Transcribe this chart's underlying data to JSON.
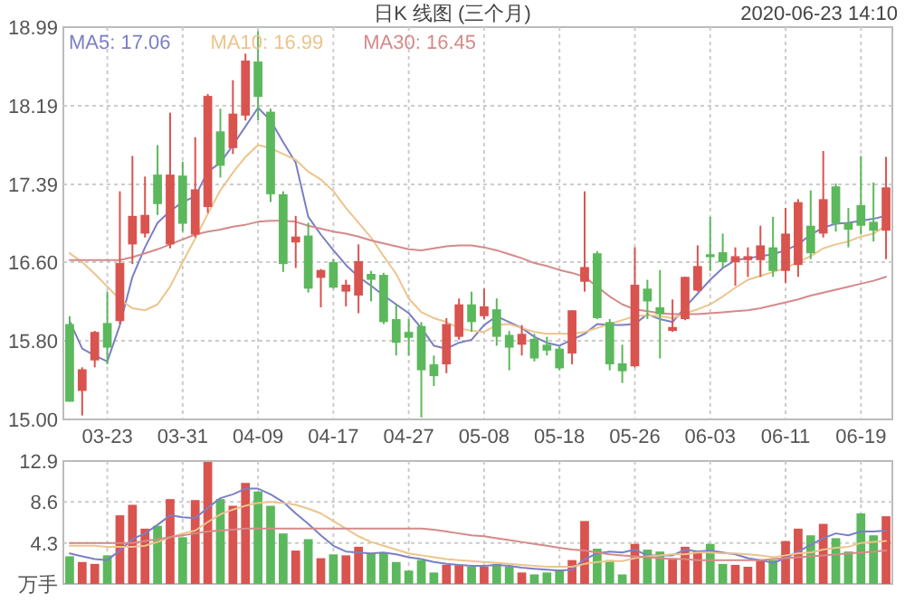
{
  "chart_data": [
    {
      "type": "candlestick",
      "title": "日K 线图 (三个月)",
      "annotations": [
        "2020-06-23 14:10"
      ],
      "categories": [
        null,
        null,
        null,
        "03-23",
        null,
        null,
        null,
        null,
        null,
        "03-31",
        null,
        null,
        null,
        null,
        null,
        "04-09",
        null,
        null,
        null,
        null,
        null,
        "04-17",
        null,
        null,
        null,
        null,
        null,
        "04-27",
        null,
        null,
        null,
        null,
        null,
        "05-08",
        null,
        null,
        null,
        null,
        null,
        "05-18",
        null,
        null,
        null,
        null,
        null,
        "05-26",
        null,
        null,
        null,
        null,
        null,
        "06-03",
        null,
        null,
        null,
        null,
        null,
        "06-11",
        null,
        null,
        null,
        null,
        null,
        "06-19",
        null,
        null
      ],
      "ohlc": [
        [
          15.97,
          16.05,
          15.18,
          15.18
        ],
        [
          15.29,
          15.53,
          15.04,
          15.51
        ],
        [
          15.6,
          15.9,
          15.53,
          15.89
        ],
        [
          15.98,
          16.3,
          15.56,
          15.73
        ],
        [
          16.0,
          17.32,
          15.97,
          16.59
        ],
        [
          16.78,
          17.68,
          16.58,
          17.07
        ],
        [
          16.89,
          17.47,
          16.85,
          17.08
        ],
        [
          17.49,
          17.79,
          17.08,
          17.19
        ],
        [
          16.78,
          18.12,
          16.74,
          17.49
        ],
        [
          17.48,
          17.62,
          16.91,
          16.99
        ],
        [
          16.88,
          17.87,
          16.85,
          17.34
        ],
        [
          17.16,
          18.31,
          17.1,
          18.29
        ],
        [
          17.93,
          18.16,
          17.46,
          17.58
        ],
        [
          17.76,
          18.45,
          17.7,
          18.11
        ],
        [
          18.09,
          18.72,
          18.04,
          18.65
        ],
        [
          18.64,
          18.95,
          18.04,
          18.28
        ],
        [
          18.13,
          18.16,
          17.21,
          17.29
        ],
        [
          17.29,
          17.32,
          16.5,
          16.58
        ],
        [
          16.8,
          17.07,
          16.54,
          16.86
        ],
        [
          16.87,
          17.0,
          16.29,
          16.33
        ],
        [
          16.44,
          16.53,
          16.14,
          16.52
        ],
        [
          16.6,
          16.63,
          16.33,
          16.34
        ],
        [
          16.3,
          16.42,
          16.15,
          16.37
        ],
        [
          16.26,
          16.78,
          16.08,
          16.61
        ],
        [
          16.48,
          16.51,
          16.2,
          16.42
        ],
        [
          16.47,
          16.49,
          15.97,
          15.99
        ],
        [
          16.02,
          16.17,
          15.65,
          15.78
        ],
        [
          15.89,
          16.02,
          15.65,
          15.83
        ],
        [
          15.95,
          15.99,
          15.02,
          15.5
        ],
        [
          15.56,
          15.65,
          15.34,
          15.44
        ],
        [
          15.56,
          16.03,
          15.47,
          15.97
        ],
        [
          15.84,
          16.23,
          15.81,
          16.17
        ],
        [
          16.17,
          16.3,
          15.89,
          15.99
        ],
        [
          16.05,
          16.33,
          16.02,
          16.15
        ],
        [
          16.12,
          16.23,
          15.75,
          15.84
        ],
        [
          15.86,
          15.9,
          15.5,
          15.73
        ],
        [
          15.76,
          15.96,
          15.65,
          15.87
        ],
        [
          15.82,
          15.87,
          15.59,
          15.62
        ],
        [
          15.76,
          15.84,
          15.65,
          15.7
        ],
        [
          15.72,
          15.75,
          15.5,
          15.52
        ],
        [
          15.67,
          16.11,
          15.56,
          16.11
        ],
        [
          16.4,
          17.32,
          16.3,
          16.55
        ],
        [
          16.69,
          16.71,
          16.02,
          16.03
        ],
        [
          15.99,
          16.02,
          15.5,
          15.56
        ],
        [
          15.57,
          15.76,
          15.37,
          15.49
        ],
        [
          15.54,
          16.75,
          15.53,
          16.37
        ],
        [
          16.33,
          16.42,
          16.02,
          16.2
        ],
        [
          16.14,
          16.52,
          15.62,
          16.07
        ],
        [
          15.9,
          16.22,
          15.89,
          15.94
        ],
        [
          16.02,
          16.45,
          16.01,
          16.45
        ],
        [
          16.31,
          16.77,
          16.3,
          16.56
        ],
        [
          16.68,
          17.06,
          16.51,
          16.65
        ],
        [
          16.7,
          16.89,
          16.54,
          16.6
        ],
        [
          16.6,
          16.75,
          16.36,
          16.66
        ],
        [
          16.62,
          16.75,
          16.45,
          16.66
        ],
        [
          16.62,
          16.97,
          16.45,
          16.77
        ],
        [
          16.75,
          17.06,
          16.45,
          16.51
        ],
        [
          16.51,
          17.15,
          16.39,
          16.89
        ],
        [
          16.57,
          17.24,
          16.45,
          17.21
        ],
        [
          16.97,
          17.33,
          16.63,
          16.69
        ],
        [
          16.89,
          17.73,
          16.85,
          17.24
        ],
        [
          17.37,
          17.4,
          16.91,
          16.99
        ],
        [
          17.0,
          17.15,
          16.75,
          16.93
        ],
        [
          17.18,
          17.68,
          16.88,
          16.97
        ],
        [
          17.01,
          17.41,
          16.81,
          16.92
        ],
        [
          16.92,
          17.67,
          16.63,
          17.36
        ]
      ],
      "colors": [
        "#5cb85c",
        "#d9534f",
        "#d9534f",
        "#5cb85c",
        "#d9534f",
        "#d9534f",
        "#d9534f",
        "#5cb85c",
        "#d9534f",
        "#5cb85c",
        "#d9534f",
        "#d9534f",
        "#5cb85c",
        "#d9534f",
        "#d9534f",
        "#5cb85c",
        "#5cb85c",
        "#5cb85c",
        "#d9534f",
        "#5cb85c",
        "#d9534f",
        "#5cb85c",
        "#d9534f",
        "#d9534f",
        "#5cb85c",
        "#5cb85c",
        "#5cb85c",
        "#5cb85c",
        "#5cb85c",
        "#5cb85c",
        "#d9534f",
        "#d9534f",
        "#5cb85c",
        "#d9534f",
        "#5cb85c",
        "#5cb85c",
        "#d9534f",
        "#5cb85c",
        "#5cb85c",
        "#5cb85c",
        "#d9534f",
        "#d9534f",
        "#5cb85c",
        "#5cb85c",
        "#5cb85c",
        "#d9534f",
        "#5cb85c",
        "#5cb85c",
        "#d9534f",
        "#d9534f",
        "#d9534f",
        "#5cb85c",
        "#5cb85c",
        "#d9534f",
        "#d9534f",
        "#d9534f",
        "#5cb85c",
        "#d9534f",
        "#d9534f",
        "#5cb85c",
        "#d9534f",
        "#5cb85c",
        "#5cb85c",
        "#5cb85c",
        "#5cb85c",
        "#d9534f"
      ],
      "series": [
        {
          "type": "line",
          "name": "MA5: 17.06",
          "color": "#7b7fc4",
          "values": [
            16.0,
            15.72,
            15.65,
            15.59,
            15.96,
            16.45,
            16.75,
            17.0,
            17.12,
            17.21,
            17.27,
            17.52,
            17.61,
            17.79,
            17.98,
            18.17,
            18.04,
            17.82,
            17.61,
            17.06,
            16.88,
            16.72,
            16.57,
            16.45,
            16.36,
            16.26,
            16.17,
            16.08,
            15.93,
            15.75,
            15.72,
            15.78,
            15.81,
            15.96,
            16.05,
            15.99,
            15.93,
            15.84,
            15.78,
            15.75,
            15.81,
            15.87,
            15.97,
            15.96,
            15.96,
            15.97,
            16.07,
            16.02,
            15.99,
            16.14,
            16.28,
            16.42,
            16.54,
            16.62,
            16.64,
            16.66,
            16.68,
            16.72,
            16.78,
            16.88,
            16.95,
            16.99,
            17.0,
            17.02,
            17.04,
            17.07
          ]
        },
        {
          "type": "line",
          "name": "MA10: 16.99",
          "color": "#ecc48c",
          "values": [
            16.69,
            16.6,
            16.48,
            16.35,
            16.22,
            16.13,
            16.11,
            16.17,
            16.35,
            16.6,
            16.84,
            17.09,
            17.33,
            17.51,
            17.67,
            17.79,
            17.76,
            17.7,
            17.64,
            17.52,
            17.44,
            17.32,
            17.15,
            17.0,
            16.85,
            16.66,
            16.48,
            16.23,
            16.09,
            16.03,
            15.99,
            15.93,
            15.9,
            15.89,
            15.96,
            15.97,
            15.93,
            15.89,
            15.87,
            15.87,
            15.87,
            15.89,
            15.93,
            15.97,
            16.01,
            16.05,
            16.06,
            16.05,
            16.03,
            16.08,
            16.12,
            16.17,
            16.25,
            16.34,
            16.42,
            16.46,
            16.5,
            16.54,
            16.6,
            16.66,
            16.74,
            16.78,
            16.81,
            16.86,
            16.89,
            16.97
          ]
        },
        {
          "type": "line",
          "name": "MA30: 16.45",
          "color": "#d48a8a",
          "values": [
            16.62,
            16.62,
            16.62,
            16.62,
            16.62,
            16.65,
            16.69,
            16.73,
            16.78,
            16.83,
            16.88,
            16.91,
            16.93,
            16.96,
            16.98,
            17.01,
            17.02,
            17.02,
            17.01,
            16.97,
            16.94,
            16.91,
            16.89,
            16.86,
            16.82,
            16.79,
            16.76,
            16.73,
            16.72,
            16.74,
            16.76,
            16.77,
            16.77,
            16.75,
            16.72,
            16.68,
            16.64,
            16.59,
            16.56,
            16.52,
            16.49,
            16.45,
            16.35,
            16.25,
            16.17,
            16.12,
            16.1,
            16.08,
            16.07,
            16.07,
            16.07,
            16.08,
            16.09,
            16.1,
            16.11,
            16.13,
            16.16,
            16.19,
            16.22,
            16.26,
            16.29,
            16.32,
            16.35,
            16.38,
            16.41,
            16.45
          ]
        }
      ],
      "ylim": [
        15.0,
        18.99
      ],
      "yticks": [
        {
          "value": 15.0,
          "label": "15.00"
        },
        {
          "value": 15.8,
          "label": "15.80"
        },
        {
          "value": 16.6,
          "label": "16.60"
        },
        17.39,
        18.19,
        18.99
      ],
      "grid": true,
      "legend": "top left"
    },
    {
      "type": "bar",
      "categories": [
        null,
        null,
        null,
        null,
        null,
        null,
        null,
        null,
        null,
        null,
        null,
        null,
        null,
        null,
        null,
        null,
        null,
        null,
        null,
        null,
        null,
        null,
        null,
        null,
        null,
        null,
        null,
        null,
        null,
        null,
        null,
        null,
        null,
        null,
        null,
        null,
        null,
        null,
        null,
        null,
        null,
        null,
        null,
        null,
        null,
        null,
        null,
        null,
        null,
        null,
        null,
        null,
        null,
        null,
        null,
        null,
        null,
        null,
        null,
        null,
        null,
        null,
        null,
        null,
        null,
        null
      ],
      "series": [
        {
          "type": "bar",
          "colors": [
            "#5cb85c",
            "#d9534f",
            "#d9534f",
            "#5cb85c",
            "#d9534f",
            "#d9534f",
            "#d9534f",
            "#5cb85c",
            "#d9534f",
            "#5cb85c",
            "#d9534f",
            "#d9534f",
            "#5cb85c",
            "#d9534f",
            "#d9534f",
            "#5cb85c",
            "#5cb85c",
            "#5cb85c",
            "#d9534f",
            "#5cb85c",
            "#d9534f",
            "#5cb85c",
            "#d9534f",
            "#d9534f",
            "#5cb85c",
            "#5cb85c",
            "#5cb85c",
            "#5cb85c",
            "#5cb85c",
            "#5cb85c",
            "#d9534f",
            "#d9534f",
            "#5cb85c",
            "#d9534f",
            "#5cb85c",
            "#5cb85c",
            "#d9534f",
            "#5cb85c",
            "#5cb85c",
            "#5cb85c",
            "#d9534f",
            "#d9534f",
            "#5cb85c",
            "#5cb85c",
            "#5cb85c",
            "#d9534f",
            "#5cb85c",
            "#5cb85c",
            "#d9534f",
            "#d9534f",
            "#d9534f",
            "#5cb85c",
            "#5cb85c",
            "#d9534f",
            "#d9534f",
            "#d9534f",
            "#5cb85c",
            "#d9534f",
            "#d9534f",
            "#5cb85c",
            "#d9534f",
            "#5cb85c",
            "#5cb85c",
            "#5cb85c",
            "#5cb85c",
            "#d9534f"
          ],
          "values": [
            2.9,
            2.3,
            2.1,
            3.0,
            7.2,
            8.3,
            5.8,
            6.1,
            8.9,
            4.9,
            8.8,
            12.8,
            8.9,
            8.2,
            10.6,
            9.7,
            8.2,
            5.3,
            3.5,
            4.7,
            2.7,
            3.1,
            3.0,
            3.9,
            3.2,
            3.3,
            2.3,
            1.4,
            2.5,
            1.2,
            2.0,
            2.0,
            1.8,
            1.8,
            2.1,
            1.8,
            1.2,
            1.0,
            1.2,
            1.5,
            2.5,
            6.6,
            3.7,
            2.5,
            1.0,
            4.2,
            3.6,
            3.4,
            2.7,
            3.9,
            3.5,
            4.2,
            2.1,
            2.0,
            1.8,
            2.5,
            2.5,
            4.5,
            5.8,
            5.1,
            6.3,
            4.8,
            3.4,
            7.4,
            5.1,
            7.1
          ]
        },
        {
          "type": "line",
          "color": "#7b7fc4",
          "values": [
            3.2,
            2.9,
            2.6,
            2.5,
            3.5,
            4.7,
            5.3,
            6.2,
            7.2,
            7.0,
            6.9,
            8.0,
            9.0,
            9.4,
            10.0,
            10.0,
            9.4,
            8.6,
            7.4,
            6.3,
            5.1,
            4.0,
            3.4,
            3.3,
            3.2,
            3.3,
            3.1,
            2.8,
            2.6,
            2.3,
            2.1,
            2.0,
            1.9,
            1.9,
            2.0,
            1.9,
            1.7,
            1.6,
            1.5,
            1.4,
            1.5,
            2.6,
            3.2,
            3.4,
            3.3,
            3.6,
            3.0,
            3.0,
            3.0,
            3.6,
            3.4,
            3.5,
            3.3,
            3.1,
            2.7,
            2.5,
            2.2,
            2.7,
            3.4,
            4.1,
            4.8,
            5.3,
            5.1,
            5.5,
            5.5,
            5.6
          ]
        },
        {
          "type": "line",
          "color": "#ecc48c",
          "values": [
            4.0,
            4.0,
            4.0,
            3.9,
            3.9,
            3.9,
            4.0,
            4.4,
            4.9,
            5.3,
            5.6,
            6.5,
            7.3,
            7.8,
            8.2,
            8.5,
            8.6,
            8.5,
            8.3,
            7.9,
            7.4,
            6.6,
            5.8,
            5.0,
            4.4,
            4.0,
            3.6,
            3.2,
            3.0,
            2.8,
            2.6,
            2.5,
            2.4,
            2.3,
            2.2,
            2.1,
            2.0,
            1.9,
            1.8,
            1.8,
            1.8,
            2.1,
            2.3,
            2.4,
            2.4,
            2.7,
            2.9,
            3.0,
            3.1,
            3.1,
            3.3,
            3.3,
            3.2,
            3.2,
            3.1,
            3.0,
            2.8,
            3.0,
            3.2,
            3.3,
            3.6,
            3.8,
            3.9,
            4.3,
            4.4,
            4.5
          ]
        },
        {
          "type": "line",
          "color": "#d48a8a",
          "values": [
            4.3,
            4.3,
            4.3,
            4.3,
            4.3,
            4.3,
            4.5,
            4.7,
            4.9,
            5.1,
            5.3,
            5.5,
            5.6,
            5.7,
            5.8,
            5.8,
            5.8,
            5.8,
            5.8,
            5.8,
            5.8,
            5.8,
            5.8,
            5.8,
            5.8,
            5.8,
            5.8,
            5.8,
            5.8,
            5.7,
            5.5,
            5.3,
            5.1,
            5.0,
            4.8,
            4.6,
            4.4,
            4.2,
            4.0,
            3.8,
            3.6,
            3.5,
            3.3,
            3.1,
            3.0,
            2.9,
            2.8,
            2.7,
            2.6,
            2.6,
            2.5,
            2.5,
            2.5,
            2.5,
            2.5,
            2.5,
            2.6,
            2.7,
            2.8,
            2.9,
            3.0,
            3.1,
            3.2,
            3.3,
            3.4,
            3.5
          ]
        }
      ],
      "ylim": [
        0,
        12.9
      ],
      "yticks": [
        {
          "value": 0,
          "label": "万手"
        },
        4.3,
        8.6,
        12.9
      ],
      "grid": true,
      "tick_labels": "y"
    }
  ]
}
